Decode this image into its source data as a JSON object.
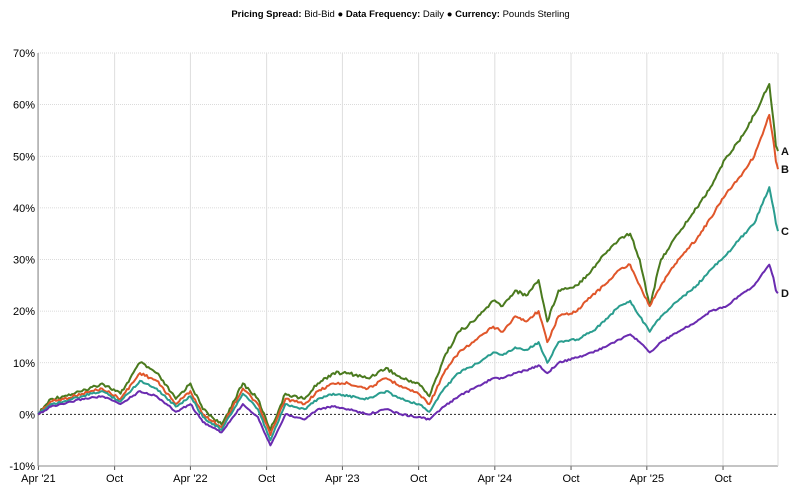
{
  "header": {
    "spread_label": "Pricing Spread:",
    "spread_value": "Bid-Bid",
    "frequency_label": "Data Frequency:",
    "frequency_value": "Daily",
    "currency_label": "Currency:",
    "currency_value": "Pounds Sterling",
    "separator": "●"
  },
  "chart_data": {
    "type": "line",
    "title": "",
    "xlabel": "",
    "ylabel": "",
    "ylim": [
      -10,
      70
    ],
    "xlim": [
      "2021-03-31",
      "2026-02-10"
    ],
    "y_ticks": [
      -10,
      0,
      10,
      20,
      30,
      40,
      50,
      60,
      70
    ],
    "y_tick_labels": [
      "-10%",
      "0%",
      "10%",
      "20%",
      "30%",
      "40%",
      "50%",
      "60%",
      "70%"
    ],
    "x_ticks": [
      "2021-04-01",
      "2021-10-01",
      "2022-04-01",
      "2022-10-01",
      "2023-04-01",
      "2023-10-01",
      "2024-04-01",
      "2024-10-01",
      "2025-04-01",
      "2025-10-01"
    ],
    "x_tick_labels": [
      "Apr '21",
      "Oct",
      "Apr '22",
      "Oct",
      "Apr '23",
      "Oct",
      "Apr '24",
      "Oct",
      "Apr '25",
      "Oct"
    ],
    "grid": true,
    "zero_line": "dotted",
    "series": [
      {
        "name": "A",
        "color": "#4a7a1e",
        "points": [
          [
            "2021-03-31",
            0
          ],
          [
            "2021-05-01",
            3
          ],
          [
            "2021-06-01",
            3.5
          ],
          [
            "2021-07-15",
            4.5
          ],
          [
            "2021-09-01",
            6
          ],
          [
            "2021-10-15",
            4
          ],
          [
            "2021-12-01",
            10
          ],
          [
            "2022-01-10",
            8
          ],
          [
            "2022-02-25",
            3
          ],
          [
            "2022-04-01",
            6
          ],
          [
            "2022-05-01",
            1
          ],
          [
            "2022-06-15",
            -2
          ],
          [
            "2022-08-05",
            6
          ],
          [
            "2022-09-10",
            3
          ],
          [
            "2022-10-10",
            -3
          ],
          [
            "2022-11-15",
            4
          ],
          [
            "2022-12-31",
            3
          ],
          [
            "2023-02-01",
            6
          ],
          [
            "2023-03-10",
            8
          ],
          [
            "2023-04-15",
            8
          ],
          [
            "2023-06-01",
            7
          ],
          [
            "2023-07-15",
            9
          ],
          [
            "2023-08-20",
            7
          ],
          [
            "2023-10-01",
            6
          ],
          [
            "2023-10-27",
            3.5
          ],
          [
            "2023-12-01",
            11
          ],
          [
            "2024-01-05",
            16
          ],
          [
            "2024-02-10",
            18
          ],
          [
            "2024-03-28",
            22
          ],
          [
            "2024-04-20",
            21
          ],
          [
            "2024-05-20",
            24
          ],
          [
            "2024-06-15",
            23
          ],
          [
            "2024-07-15",
            26
          ],
          [
            "2024-08-05",
            18
          ],
          [
            "2024-09-01",
            24
          ],
          [
            "2024-10-15",
            25
          ],
          [
            "2024-11-20",
            28
          ],
          [
            "2024-12-20",
            31
          ],
          [
            "2025-01-25",
            34
          ],
          [
            "2025-02-20",
            35
          ],
          [
            "2025-03-15",
            30
          ],
          [
            "2025-04-08",
            21
          ],
          [
            "2025-05-05",
            30
          ],
          [
            "2025-06-15",
            35
          ],
          [
            "2025-07-30",
            40
          ],
          [
            "2025-09-01",
            44
          ],
          [
            "2025-10-10",
            50
          ],
          [
            "2025-11-10",
            53
          ],
          [
            "2025-12-15",
            58
          ],
          [
            "2026-01-20",
            64
          ],
          [
            "2026-01-30",
            57
          ],
          [
            "2026-02-05",
            52
          ],
          [
            "2026-02-10",
            51
          ]
        ],
        "end_label": "A"
      },
      {
        "name": "B",
        "color": "#e0562a",
        "points": [
          [
            "2021-03-31",
            0
          ],
          [
            "2021-05-01",
            2.5
          ],
          [
            "2021-06-01",
            3
          ],
          [
            "2021-07-15",
            4
          ],
          [
            "2021-09-01",
            5
          ],
          [
            "2021-10-15",
            3
          ],
          [
            "2021-12-01",
            8
          ],
          [
            "2022-01-10",
            6.5
          ],
          [
            "2022-02-25",
            2
          ],
          [
            "2022-04-01",
            4.5
          ],
          [
            "2022-05-01",
            0
          ],
          [
            "2022-06-15",
            -2.5
          ],
          [
            "2022-08-05",
            5
          ],
          [
            "2022-09-10",
            2
          ],
          [
            "2022-10-10",
            -4
          ],
          [
            "2022-11-15",
            3
          ],
          [
            "2022-12-31",
            2
          ],
          [
            "2023-02-01",
            4.5
          ],
          [
            "2023-03-10",
            6
          ],
          [
            "2023-04-15",
            6
          ],
          [
            "2023-06-01",
            5
          ],
          [
            "2023-07-15",
            7
          ],
          [
            "2023-08-20",
            5.5
          ],
          [
            "2023-10-01",
            4
          ],
          [
            "2023-10-27",
            2
          ],
          [
            "2023-12-01",
            8
          ],
          [
            "2024-01-05",
            12
          ],
          [
            "2024-02-10",
            14
          ],
          [
            "2024-03-28",
            17
          ],
          [
            "2024-04-20",
            16
          ],
          [
            "2024-05-20",
            19
          ],
          [
            "2024-06-15",
            18
          ],
          [
            "2024-07-15",
            20
          ],
          [
            "2024-08-05",
            14
          ],
          [
            "2024-09-01",
            19
          ],
          [
            "2024-10-15",
            20
          ],
          [
            "2024-11-20",
            23
          ],
          [
            "2024-12-20",
            25
          ],
          [
            "2025-01-25",
            28
          ],
          [
            "2025-02-20",
            29
          ],
          [
            "2025-03-15",
            25
          ],
          [
            "2025-04-08",
            21
          ],
          [
            "2025-05-05",
            25
          ],
          [
            "2025-06-15",
            30
          ],
          [
            "2025-07-30",
            34
          ],
          [
            "2025-09-01",
            38
          ],
          [
            "2025-10-10",
            43
          ],
          [
            "2025-11-10",
            46
          ],
          [
            "2025-12-15",
            50
          ],
          [
            "2026-01-20",
            58
          ],
          [
            "2026-01-30",
            53
          ],
          [
            "2026-02-05",
            49
          ],
          [
            "2026-02-10",
            47.5
          ]
        ],
        "end_label": "B"
      },
      {
        "name": "C",
        "color": "#2a9d8f",
        "points": [
          [
            "2021-03-31",
            0
          ],
          [
            "2021-05-01",
            2
          ],
          [
            "2021-06-01",
            2.5
          ],
          [
            "2021-07-15",
            3.5
          ],
          [
            "2021-09-01",
            4.5
          ],
          [
            "2021-10-15",
            2.5
          ],
          [
            "2021-12-01",
            6.5
          ],
          [
            "2022-01-10",
            5
          ],
          [
            "2022-02-25",
            1.5
          ],
          [
            "2022-04-01",
            3.5
          ],
          [
            "2022-05-01",
            -0.5
          ],
          [
            "2022-06-15",
            -3
          ],
          [
            "2022-08-05",
            4
          ],
          [
            "2022-09-10",
            1
          ],
          [
            "2022-10-10",
            -5
          ],
          [
            "2022-11-15",
            2
          ],
          [
            "2022-12-31",
            1
          ],
          [
            "2023-02-01",
            3
          ],
          [
            "2023-03-10",
            4
          ],
          [
            "2023-04-15",
            3.5
          ],
          [
            "2023-06-01",
            3
          ],
          [
            "2023-07-15",
            4.5
          ],
          [
            "2023-08-20",
            3
          ],
          [
            "2023-10-01",
            2
          ],
          [
            "2023-10-27",
            0.5
          ],
          [
            "2023-12-01",
            5
          ],
          [
            "2024-01-05",
            8
          ],
          [
            "2024-02-10",
            9.5
          ],
          [
            "2024-03-28",
            12
          ],
          [
            "2024-04-20",
            11.5
          ],
          [
            "2024-05-20",
            13
          ],
          [
            "2024-06-15",
            12.5
          ],
          [
            "2024-07-15",
            14
          ],
          [
            "2024-08-05",
            10
          ],
          [
            "2024-09-01",
            14
          ],
          [
            "2024-10-15",
            14.5
          ],
          [
            "2024-11-20",
            16
          ],
          [
            "2024-12-20",
            18
          ],
          [
            "2025-01-25",
            21
          ],
          [
            "2025-02-20",
            22
          ],
          [
            "2025-03-15",
            19
          ],
          [
            "2025-04-08",
            16
          ],
          [
            "2025-05-05",
            19
          ],
          [
            "2025-06-15",
            22
          ],
          [
            "2025-07-30",
            25
          ],
          [
            "2025-09-01",
            28
          ],
          [
            "2025-10-10",
            31
          ],
          [
            "2025-11-10",
            34
          ],
          [
            "2025-12-15",
            37
          ],
          [
            "2026-01-20",
            44
          ],
          [
            "2026-01-30",
            40
          ],
          [
            "2026-02-05",
            37
          ],
          [
            "2026-02-10",
            35.5
          ]
        ],
        "end_label": "C"
      },
      {
        "name": "D",
        "color": "#6a2bb0",
        "points": [
          [
            "2021-03-31",
            0
          ],
          [
            "2021-05-01",
            1.5
          ],
          [
            "2021-06-01",
            2
          ],
          [
            "2021-07-15",
            3
          ],
          [
            "2021-09-01",
            3.5
          ],
          [
            "2021-10-15",
            2
          ],
          [
            "2021-12-01",
            4.5
          ],
          [
            "2022-01-10",
            3.5
          ],
          [
            "2022-02-25",
            0.5
          ],
          [
            "2022-04-01",
            2
          ],
          [
            "2022-05-01",
            -1.5
          ],
          [
            "2022-06-15",
            -3.5
          ],
          [
            "2022-08-05",
            2
          ],
          [
            "2022-09-10",
            -0.5
          ],
          [
            "2022-10-10",
            -6
          ],
          [
            "2022-11-15",
            0
          ],
          [
            "2022-12-31",
            -1
          ],
          [
            "2023-02-01",
            1
          ],
          [
            "2023-03-10",
            1.5
          ],
          [
            "2023-04-15",
            1
          ],
          [
            "2023-06-01",
            0
          ],
          [
            "2023-07-15",
            1
          ],
          [
            "2023-08-20",
            0
          ],
          [
            "2023-10-01",
            -0.5
          ],
          [
            "2023-10-27",
            -1
          ],
          [
            "2023-12-01",
            1.5
          ],
          [
            "2024-01-05",
            3.5
          ],
          [
            "2024-02-10",
            5
          ],
          [
            "2024-03-28",
            7
          ],
          [
            "2024-04-20",
            7
          ],
          [
            "2024-05-20",
            8
          ],
          [
            "2024-06-15",
            8.5
          ],
          [
            "2024-07-15",
            9.5
          ],
          [
            "2024-08-05",
            8
          ],
          [
            "2024-09-01",
            10
          ],
          [
            "2024-10-15",
            11
          ],
          [
            "2024-11-20",
            12
          ],
          [
            "2024-12-20",
            13
          ],
          [
            "2025-01-25",
            14.5
          ],
          [
            "2025-02-20",
            15.5
          ],
          [
            "2025-03-15",
            14
          ],
          [
            "2025-04-08",
            12
          ],
          [
            "2025-05-05",
            14
          ],
          [
            "2025-06-15",
            16
          ],
          [
            "2025-07-30",
            18
          ],
          [
            "2025-09-01",
            20
          ],
          [
            "2025-10-10",
            21
          ],
          [
            "2025-11-10",
            23
          ],
          [
            "2025-12-15",
            25
          ],
          [
            "2026-01-20",
            29
          ],
          [
            "2026-01-30",
            26.5
          ],
          [
            "2026-02-05",
            24
          ],
          [
            "2026-02-10",
            23.5
          ]
        ],
        "end_label": "D"
      }
    ]
  }
}
